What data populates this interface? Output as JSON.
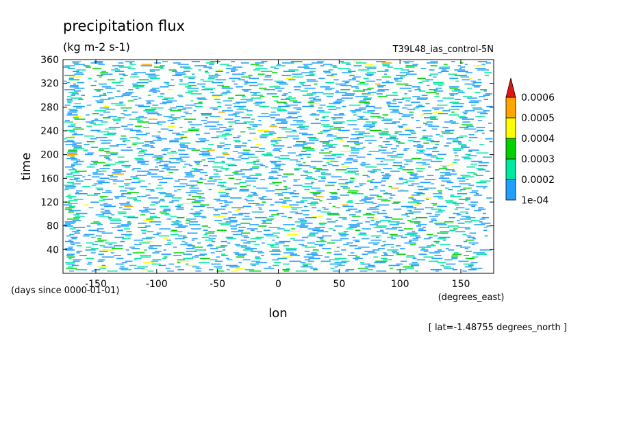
{
  "chart_data": {
    "type": "heatmap",
    "title": "precipitation flux",
    "units": "(kg m-2 s-1)",
    "dataset_label": "T39L48_ias_control-5N",
    "xlabel": "lon",
    "x_units": "(degrees_east)",
    "ylabel": "time",
    "y_units": "(days since 0000-01-01)",
    "footnote": "[ lat=-1.48755 degrees_north ]",
    "xlim": [
      -177,
      177
    ],
    "ylim": [
      0,
      360
    ],
    "x_ticks": [
      -150,
      -100,
      -50,
      0,
      50,
      100,
      150
    ],
    "x_tick_labels": [
      "-150",
      "-100",
      "-50",
      "0",
      "50",
      "100",
      "150"
    ],
    "y_ticks": [
      40,
      80,
      120,
      160,
      200,
      240,
      280,
      320,
      360
    ],
    "y_tick_labels": [
      "40",
      "80",
      "120",
      "160",
      "200",
      "240",
      "280",
      "320",
      "360"
    ],
    "colorbar": {
      "levels": [
        "1e-04",
        "0.0002",
        "0.0003",
        "0.0004",
        "0.0005",
        "0.0006"
      ],
      "colors": [
        "#1ea0ff",
        "#00e8a0",
        "#00d200",
        "#ffff00",
        "#ffa500",
        "#e11414"
      ]
    },
    "grid": false
  }
}
